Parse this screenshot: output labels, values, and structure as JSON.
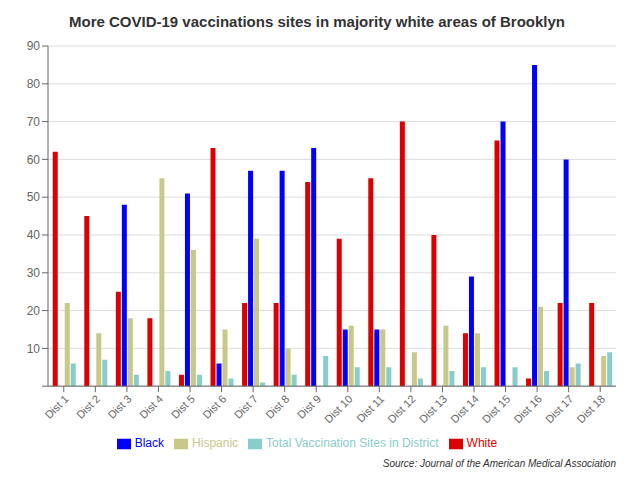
{
  "chart_data": {
    "type": "bar",
    "title": "More COVID-19 vaccinations sites in majority white areas of Brooklyn",
    "categories": [
      "Dist 1",
      "Dist 2",
      "Dist 3",
      "Dist 4",
      "Dist 5",
      "Dist 6",
      "Dist 7",
      "Dist 8",
      "Dist 9",
      "Dist 10",
      "Dist 11",
      "Dist 12",
      "Dist 13",
      "Dist 14",
      "Dist 15",
      "Dist 16",
      "Dist 17",
      "Dist 18"
    ],
    "series": [
      {
        "name": "White",
        "color": "#dd0000",
        "values": [
          62,
          45,
          25,
          18,
          3,
          63,
          22,
          22,
          54,
          39,
          55,
          70,
          40,
          14,
          65,
          2,
          22,
          22
        ]
      },
      {
        "name": "Black",
        "color": "#0000ff",
        "values": [
          0,
          0,
          48,
          0,
          51,
          6,
          57,
          57,
          63,
          15,
          15,
          0,
          0,
          29,
          70,
          85,
          60,
          0
        ]
      },
      {
        "name": "Hispanic",
        "color": "#c8c888",
        "values": [
          22,
          14,
          18,
          55,
          36,
          15,
          39,
          10,
          0,
          16,
          15,
          9,
          16,
          14,
          0,
          21,
          5,
          8
        ]
      },
      {
        "name": "Total Vaccination Sites in District",
        "color": "#88cccc",
        "values": [
          6,
          7,
          3,
          4,
          3,
          2,
          1,
          3,
          8,
          5,
          5,
          2,
          4,
          5,
          5,
          4,
          6,
          9
        ]
      }
    ],
    "ylim": [
      0,
      90
    ],
    "yticks": [
      {
        "value": 0,
        "label": ""
      },
      10,
      20,
      30,
      40,
      50,
      60,
      70,
      80,
      90
    ],
    "grid": true,
    "legend": "bottom",
    "annotations": [
      "Source: Journal of the American Medical Association"
    ]
  }
}
